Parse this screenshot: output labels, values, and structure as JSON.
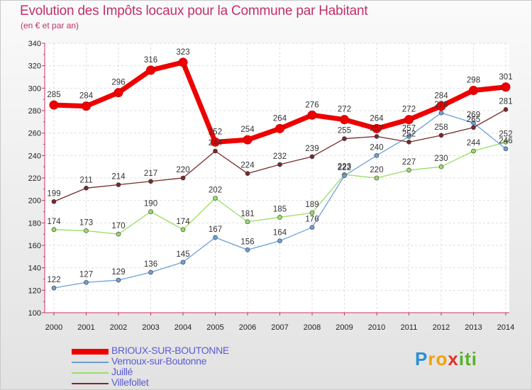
{
  "chart_data": {
    "type": "line",
    "title": "Evolution des Impôts locaux pour la Commune par Habitant",
    "subtitle": "(en € et par an)",
    "xlabel": "",
    "ylabel": "",
    "categories": [
      "2000",
      "2001",
      "2002",
      "2003",
      "2004",
      "2005",
      "2006",
      "2007",
      "2008",
      "2009",
      "2010",
      "2011",
      "2012",
      "2013",
      "2014"
    ],
    "ylim": [
      100,
      340
    ],
    "yticks": [
      100,
      120,
      140,
      160,
      180,
      200,
      220,
      240,
      260,
      280,
      300,
      320,
      340
    ],
    "grid": true,
    "legend": "bottom-left",
    "series": [
      {
        "name": "BRIOUX-SUR-BOUTONNE",
        "color": "#ee0000",
        "values": [
          285,
          284,
          296,
          316,
          323,
          252,
          254,
          264,
          276,
          272,
          264,
          272,
          284,
          298,
          301
        ]
      },
      {
        "name": "Vernoux-sur-Boutonne",
        "color": "#6ca0d6",
        "values": [
          122,
          127,
          129,
          136,
          145,
          167,
          156,
          164,
          176,
          222,
          240,
          257,
          278,
          269,
          246
        ]
      },
      {
        "name": "Juillé",
        "color": "#99dd66",
        "values": [
          174,
          173,
          170,
          190,
          174,
          202,
          181,
          185,
          189,
          223,
          220,
          227,
          230,
          244,
          252
        ]
      },
      {
        "name": "Villefollet",
        "color": "#7a2a2a",
        "values": [
          199,
          211,
          214,
          217,
          220,
          244,
          224,
          232,
          239,
          255,
          257,
          252,
          258,
          265,
          281
        ]
      }
    ]
  },
  "logo": {
    "text": "Proxiti",
    "letters": [
      "P",
      "r",
      "o",
      "x",
      "i",
      "t",
      "i"
    ]
  }
}
